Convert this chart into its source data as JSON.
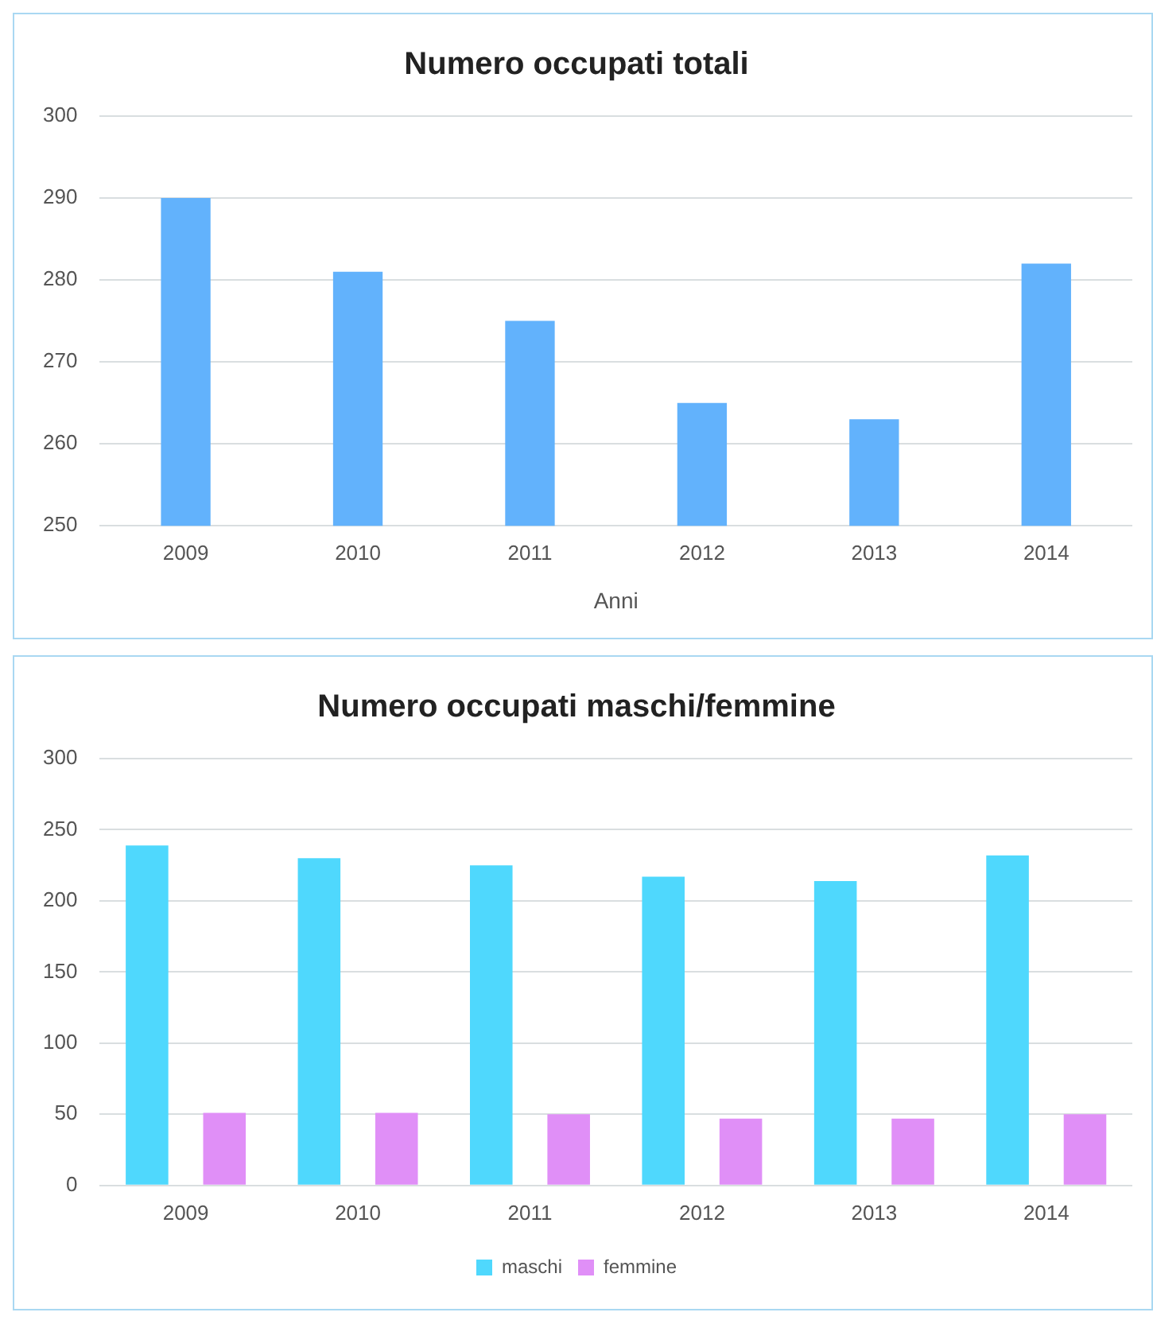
{
  "chart_data": [
    {
      "type": "bar",
      "title": "Numero occupati totali",
      "xlabel": "Anni",
      "categories": [
        "2009",
        "2010",
        "2011",
        "2012",
        "2013",
        "2014"
      ],
      "series": [
        {
          "color": "#62b2fc",
          "values": [
            290,
            281,
            275,
            265,
            263,
            282
          ]
        }
      ],
      "ylim": [
        250,
        300
      ],
      "yticks": [
        250,
        260,
        270,
        280,
        290,
        300
      ],
      "grid": "y",
      "legend": false
    },
    {
      "type": "bar",
      "title": "Numero occupati maschi/femmine",
      "categories": [
        "2009",
        "2010",
        "2011",
        "2012",
        "2013",
        "2014"
      ],
      "series": [
        {
          "name": "maschi",
          "color": "#4fd8fd",
          "values": [
            239,
            230,
            225,
            217,
            214,
            232
          ]
        },
        {
          "name": "femmine",
          "color": "#e08ff7",
          "values": [
            51,
            51,
            50,
            47,
            47,
            50
          ]
        }
      ],
      "ylim": [
        0,
        300
      ],
      "yticks": [
        0,
        50,
        100,
        150,
        200,
        250,
        300
      ],
      "grid": "y",
      "legend": "bottom"
    }
  ]
}
